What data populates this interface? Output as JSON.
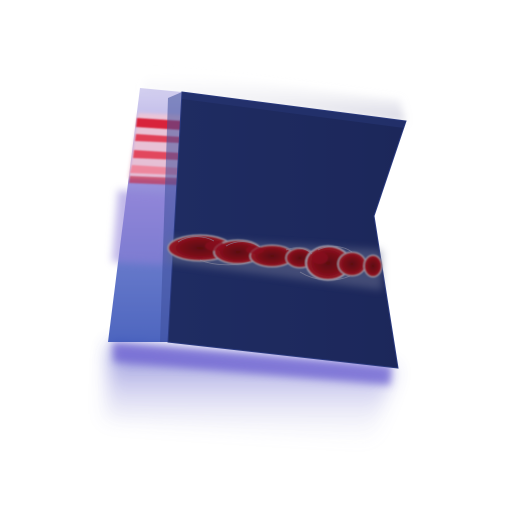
{
  "scene": {
    "background_color": "#ffffff",
    "volume_colors": {
      "slab_dark": "#1e2a5e",
      "slab_edge": "#2a3a80",
      "glow_purple": "#7b6fd0",
      "glow_blue": "#4a60c0",
      "hot_red": "#d8203a",
      "hot_pink": "#f07a90",
      "band_crimson": "#6a0a14",
      "band_mid": "#8a1020",
      "band_edge_gray": "#9a9aa8"
    }
  }
}
